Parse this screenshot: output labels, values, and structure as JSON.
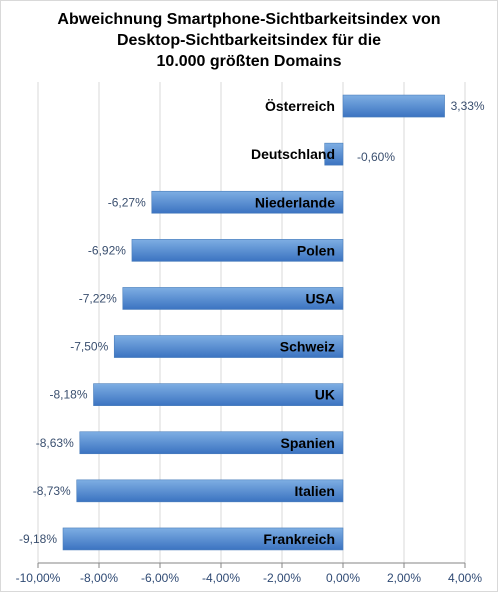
{
  "chart_data": {
    "type": "bar",
    "orientation": "horizontal",
    "title_lines": [
      "Abweichnung Smartphone-Sichtbarkeitsindex von",
      "Desktop-Sichtbarkeitsindex für die",
      "10.000 größten Domains"
    ],
    "categories": [
      "Österreich",
      "Deutschland",
      "Niederlande",
      "Polen",
      "USA",
      "Schweiz",
      "UK",
      "Spanien",
      "Italien",
      "Frankreich"
    ],
    "values": [
      3.33,
      -0.6,
      -6.27,
      -6.92,
      -7.22,
      -7.5,
      -8.18,
      -8.63,
      -8.73,
      -9.18
    ],
    "value_labels": [
      "3,33%",
      "-0,60%",
      "-6,27%",
      "-6,92%",
      "-7,22%",
      "-7,50%",
      "-8,18%",
      "-8,63%",
      "-8,73%",
      "-9,18%"
    ],
    "xlim": [
      -10,
      4
    ],
    "xticks": [
      -10,
      -8,
      -6,
      -4,
      -2,
      0,
      2,
      4
    ],
    "xtick_labels": [
      "-10,00%",
      "-8,00%",
      "-6,00%",
      "-4,00%",
      "-2,00%",
      "0,00%",
      "2,00%",
      "4,00%"
    ],
    "xlabel": "",
    "ylabel": "",
    "grid": true,
    "legend": "none",
    "colors": {
      "bar_top": "#7eaee3",
      "bar_bottom": "#3b73c1",
      "bar_border": "#4a7ebb",
      "grid": "#d9d9d9",
      "axis": "#868686",
      "tick_text": "#2f4a74",
      "value_text": "#3a4f6f"
    }
  }
}
